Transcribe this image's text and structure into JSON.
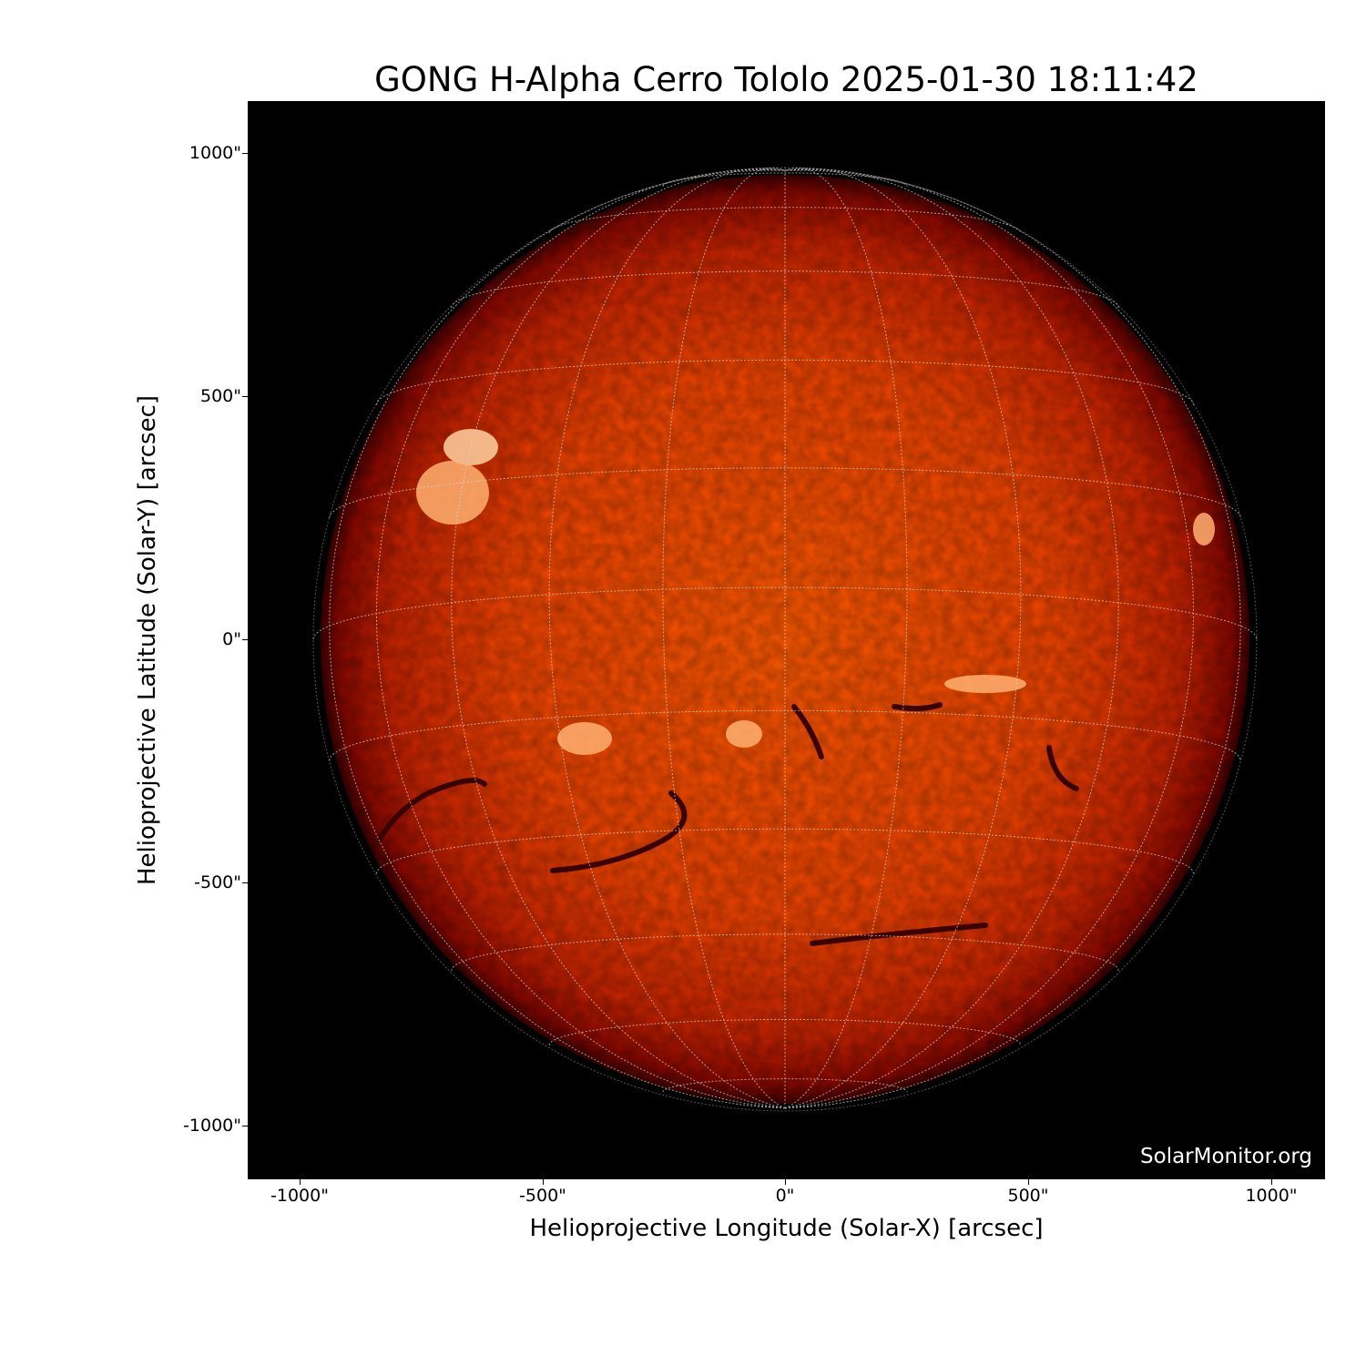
{
  "title": "GONG H-Alpha Cerro Tololo 2025-01-30 18:11:42",
  "xlabel": "Helioprojective Longitude (Solar-X) [arcsec]",
  "ylabel": "Helioprojective Latitude (Solar-Y) [arcsec]",
  "xticks": [
    "-1000\"",
    "-500\"",
    "0\"",
    "500\"",
    "1000\""
  ],
  "yticks": [
    "1000\"",
    "500\"",
    "0\"",
    "-500\"",
    "-1000\""
  ],
  "watermark": "SolarMonitor.org",
  "colors": {
    "background": "#000000",
    "disk_center": "#ff5a00",
    "disk_limb": "#8a0000",
    "grid": "#d9d9d9"
  }
}
